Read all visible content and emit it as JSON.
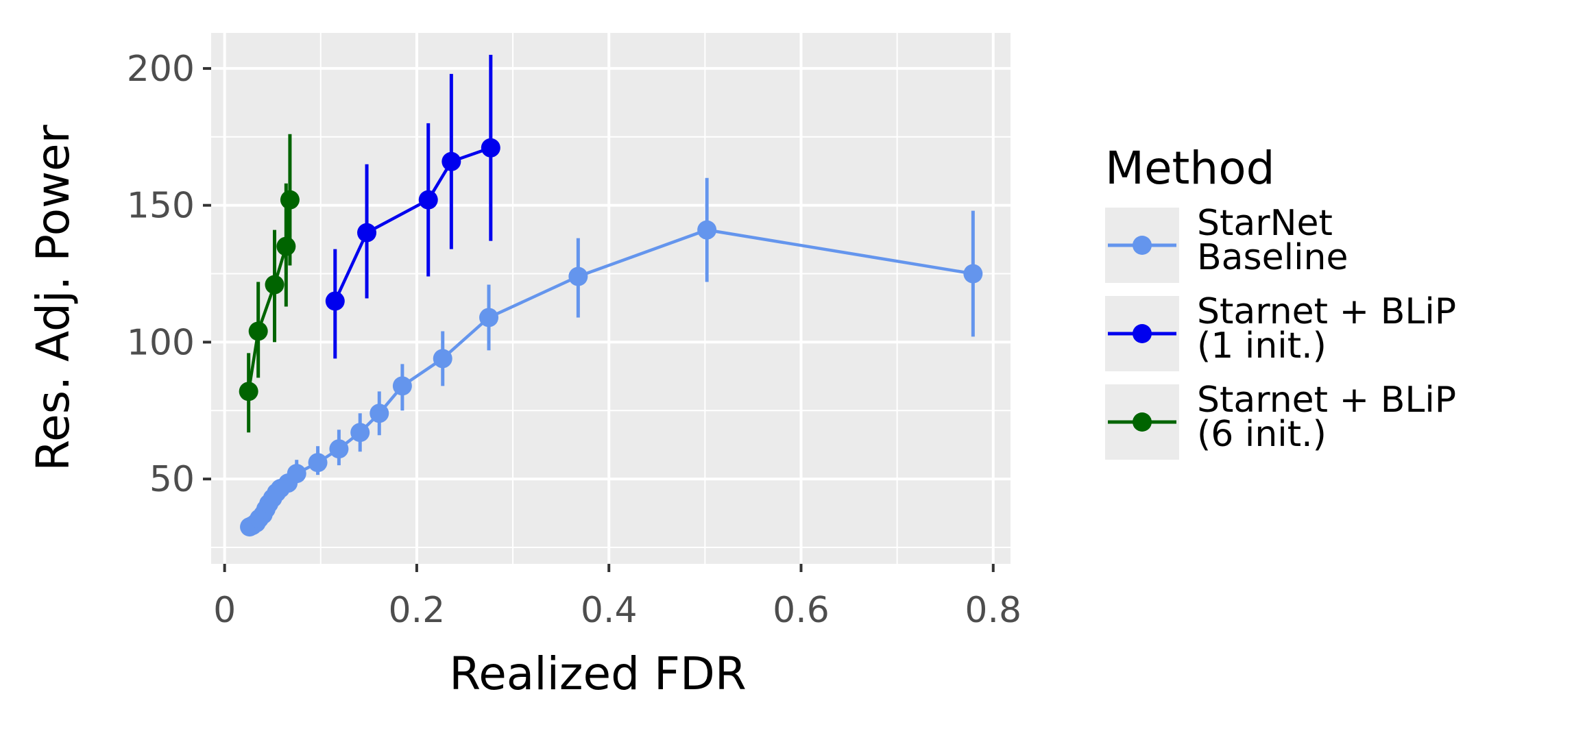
{
  "chart_data": {
    "type": "line",
    "xlabel": "Realized FDR",
    "ylabel": "Res. Adj. Power",
    "xlim": [
      -0.014,
      0.818
    ],
    "ylim": [
      19,
      213
    ],
    "x_ticks": [
      0,
      0.2,
      0.4,
      0.6,
      0.8
    ],
    "x_tick_labels": [
      "0",
      "0.2",
      "0.4",
      "0.6",
      "0.8"
    ],
    "y_ticks": [
      50,
      100,
      150,
      200
    ],
    "y_tick_labels": [
      "50",
      "100",
      "150",
      "200"
    ],
    "grid": true,
    "background": "#ebebeb",
    "legend": {
      "title": "Method",
      "placement": "right"
    },
    "series": [
      {
        "name": "StarNet Baseline",
        "label_lines": [
          "StarNet",
          "Baseline"
        ],
        "color": "#6495ed",
        "points": [
          {
            "x": 0.026,
            "y": 32.5,
            "lo": 32.5,
            "hi": 32.5
          },
          {
            "x": 0.029,
            "y": 33,
            "lo": 33,
            "hi": 33
          },
          {
            "x": 0.033,
            "y": 34,
            "lo": 34,
            "hi": 34
          },
          {
            "x": 0.036,
            "y": 35.5,
            "lo": 35.5,
            "hi": 35.5
          },
          {
            "x": 0.04,
            "y": 37,
            "lo": 37,
            "hi": 37
          },
          {
            "x": 0.043,
            "y": 39,
            "lo": 39,
            "hi": 39
          },
          {
            "x": 0.046,
            "y": 41,
            "lo": 40,
            "hi": 42
          },
          {
            "x": 0.05,
            "y": 43,
            "lo": 41.5,
            "hi": 44.5
          },
          {
            "x": 0.054,
            "y": 45,
            "lo": 43,
            "hi": 47
          },
          {
            "x": 0.058,
            "y": 46.5,
            "lo": 44.5,
            "hi": 48.5
          },
          {
            "x": 0.066,
            "y": 48.5,
            "lo": 46,
            "hi": 51
          },
          {
            "x": 0.075,
            "y": 52,
            "lo": 48.5,
            "hi": 57
          },
          {
            "x": 0.097,
            "y": 56,
            "lo": 51.5,
            "hi": 62
          },
          {
            "x": 0.119,
            "y": 61,
            "lo": 55,
            "hi": 68
          },
          {
            "x": 0.141,
            "y": 67,
            "lo": 60,
            "hi": 74
          },
          {
            "x": 0.161,
            "y": 74,
            "lo": 66,
            "hi": 82
          },
          {
            "x": 0.185,
            "y": 84,
            "lo": 75,
            "hi": 92
          },
          {
            "x": 0.227,
            "y": 94,
            "lo": 84,
            "hi": 104
          },
          {
            "x": 0.275,
            "y": 109,
            "lo": 97,
            "hi": 121
          },
          {
            "x": 0.368,
            "y": 124,
            "lo": 109,
            "hi": 138
          },
          {
            "x": 0.502,
            "y": 141,
            "lo": 122,
            "hi": 160
          },
          {
            "x": 0.779,
            "y": 125,
            "lo": 102,
            "hi": 148
          }
        ]
      },
      {
        "name": "Starnet + BLiP (1 init.)",
        "label_lines": [
          "Starnet + BLiP",
          "(1 init.)"
        ],
        "color": "#0000ee",
        "points": [
          {
            "x": 0.115,
            "y": 115,
            "lo": 94,
            "hi": 134
          },
          {
            "x": 0.148,
            "y": 140,
            "lo": 116,
            "hi": 165
          },
          {
            "x": 0.212,
            "y": 152,
            "lo": 124,
            "hi": 180
          },
          {
            "x": 0.236,
            "y": 166,
            "lo": 134,
            "hi": 198
          },
          {
            "x": 0.277,
            "y": 171,
            "lo": 137,
            "hi": 205
          }
        ]
      },
      {
        "name": "Starnet + BLiP (6 init.)",
        "label_lines": [
          "Starnet + BLiP",
          "(6 init.)"
        ],
        "color": "#006400",
        "points": [
          {
            "x": 0.025,
            "y": 82,
            "lo": 67,
            "hi": 96
          },
          {
            "x": 0.035,
            "y": 104,
            "lo": 87,
            "hi": 122
          },
          {
            "x": 0.052,
            "y": 121,
            "lo": 100,
            "hi": 141
          },
          {
            "x": 0.064,
            "y": 135,
            "lo": 113,
            "hi": 158
          },
          {
            "x": 0.068,
            "y": 152,
            "lo": 128,
            "hi": 176
          }
        ]
      }
    ]
  }
}
